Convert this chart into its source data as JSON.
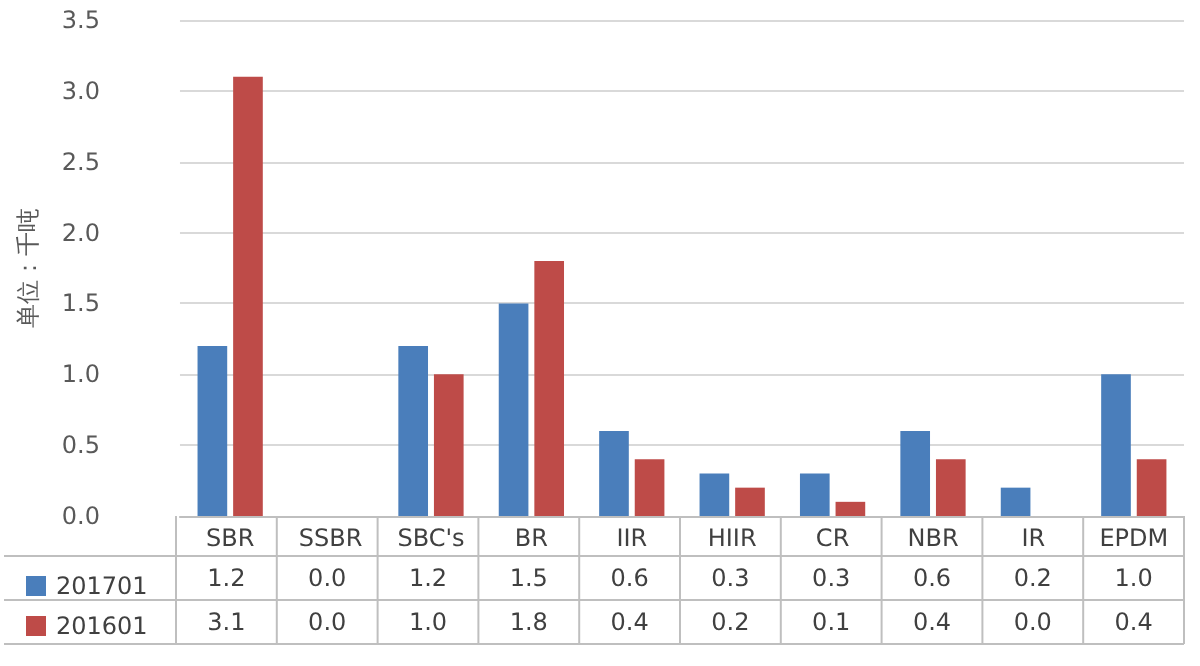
{
  "chart_data": {
    "type": "bar",
    "ylabel": "单位：千吨",
    "categories": [
      "SBR",
      "SSBR",
      "SBC's",
      "BR",
      "IIR",
      "HIIR",
      "CR",
      "NBR",
      "IR",
      "EPDM"
    ],
    "series": [
      {
        "name": "201701",
        "color": "#4a7ebb",
        "values": [
          1.2,
          0.0,
          1.2,
          1.5,
          0.6,
          0.3,
          0.3,
          0.6,
          0.2,
          1.0
        ],
        "value_labels": [
          "1.2",
          "0.0",
          "1.2",
          "1.5",
          "0.6",
          "0.3",
          "0.3",
          "0.6",
          "0.2",
          "1.0"
        ]
      },
      {
        "name": "201601",
        "color": "#be4b48",
        "values": [
          3.1,
          0.0,
          1.0,
          1.8,
          0.4,
          0.2,
          0.1,
          0.4,
          0.0,
          0.4
        ],
        "value_labels": [
          "3.1",
          "0.0",
          "1.0",
          "1.8",
          "0.4",
          "0.2",
          "0.1",
          "0.4",
          "0.0",
          "0.4"
        ]
      }
    ],
    "ylim": [
      0,
      3.5
    ],
    "yticks": [
      {
        "value": 0,
        "label": "0.0"
      },
      {
        "value": 0.5,
        "label": "0.5"
      },
      {
        "value": 1,
        "label": "1.0"
      },
      {
        "value": 1.5,
        "label": "1.5"
      },
      {
        "value": 2,
        "label": "2.0"
      },
      {
        "value": 2.5,
        "label": "2.5"
      },
      {
        "value": 3,
        "label": "3.0"
      },
      {
        "value": 3.5,
        "label": "3.5"
      }
    ],
    "grid": "y",
    "legend": "bottom left",
    "data_labels": true
  }
}
